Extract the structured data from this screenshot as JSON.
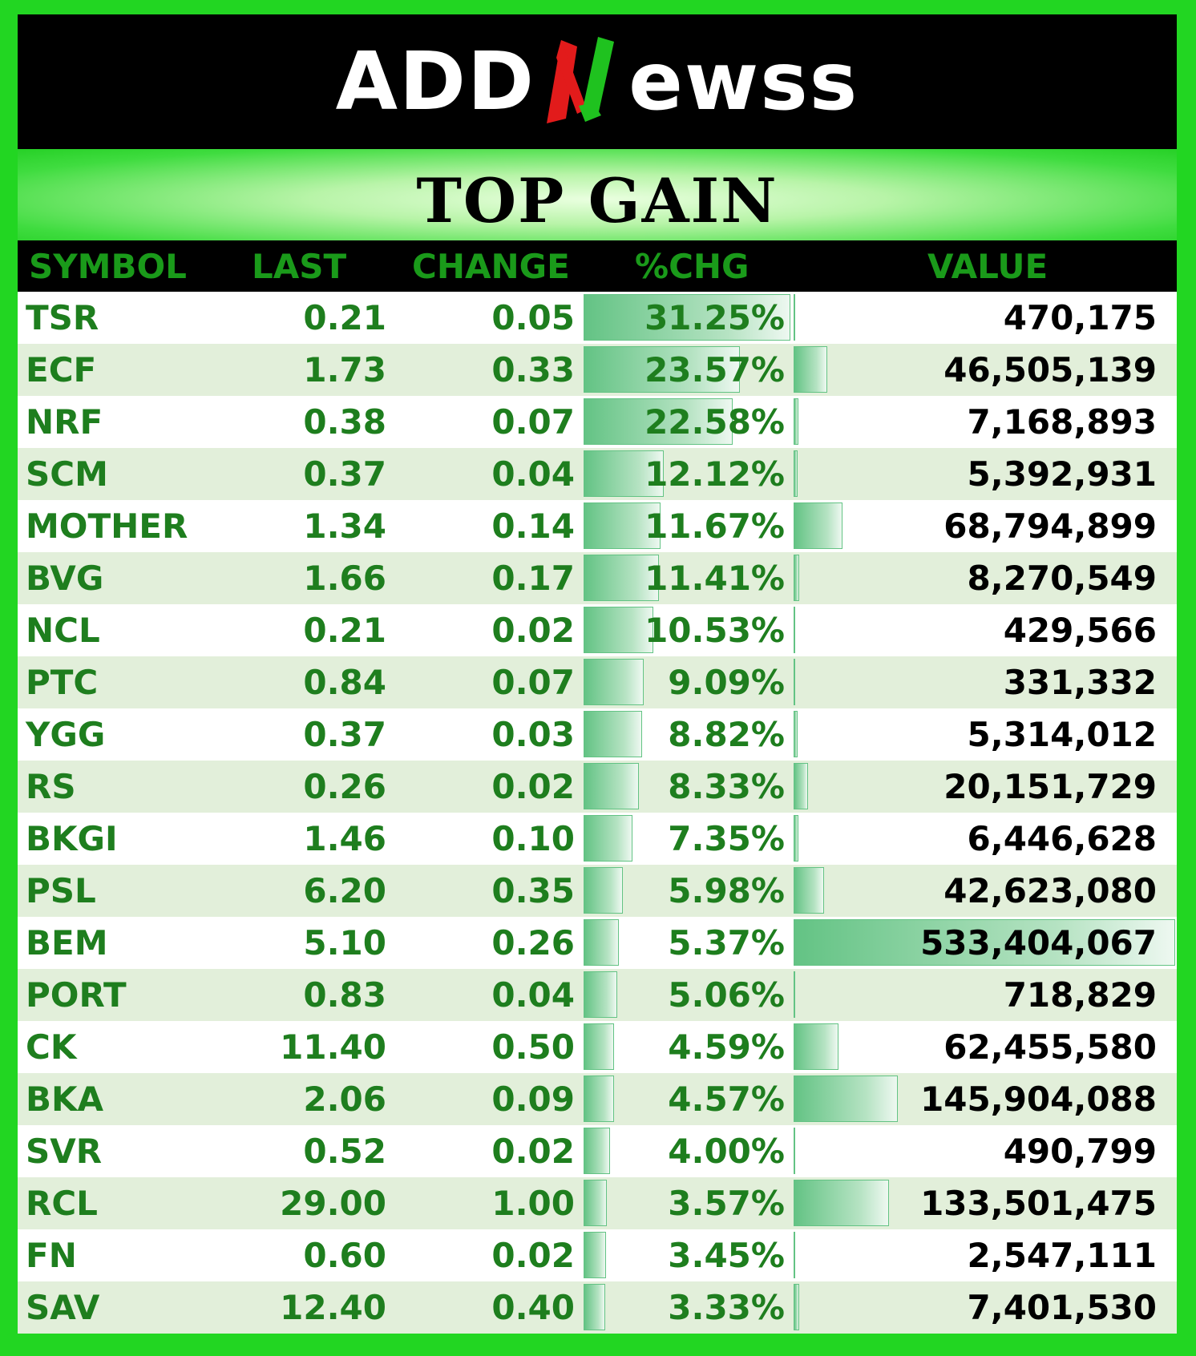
{
  "logo": {
    "text_left": "ADD",
    "text_right": "ewss",
    "mark_icon": "stylized-n-arrow-icon",
    "colors": {
      "red": "#e21b1b",
      "green": "#1fc21f"
    }
  },
  "banner": {
    "title": "TOP GAIN"
  },
  "columns": {
    "symbol": "SYMBOL",
    "last": "LAST",
    "change": "CHANGE",
    "pct": "%CHG",
    "value": "VALUE"
  },
  "rows": [
    {
      "symbol": "TSR",
      "last": "0.21",
      "change": "0.05",
      "pct": "31.25%",
      "value": "470,175",
      "pct_num": 31.25,
      "value_num": 470175
    },
    {
      "symbol": "ECF",
      "last": "1.73",
      "change": "0.33",
      "pct": "23.57%",
      "value": "46,505,139",
      "pct_num": 23.57,
      "value_num": 46505139
    },
    {
      "symbol": "NRF",
      "last": "0.38",
      "change": "0.07",
      "pct": "22.58%",
      "value": "7,168,893",
      "pct_num": 22.58,
      "value_num": 7168893
    },
    {
      "symbol": "SCM",
      "last": "0.37",
      "change": "0.04",
      "pct": "12.12%",
      "value": "5,392,931",
      "pct_num": 12.12,
      "value_num": 5392931
    },
    {
      "symbol": "MOTHER",
      "last": "1.34",
      "change": "0.14",
      "pct": "11.67%",
      "value": "68,794,899",
      "pct_num": 11.67,
      "value_num": 68794899
    },
    {
      "symbol": "BVG",
      "last": "1.66",
      "change": "0.17",
      "pct": "11.41%",
      "value": "8,270,549",
      "pct_num": 11.41,
      "value_num": 8270549
    },
    {
      "symbol": "NCL",
      "last": "0.21",
      "change": "0.02",
      "pct": "10.53%",
      "value": "429,566",
      "pct_num": 10.53,
      "value_num": 429566
    },
    {
      "symbol": "PTC",
      "last": "0.84",
      "change": "0.07",
      "pct": "9.09%",
      "value": "331,332",
      "pct_num": 9.09,
      "value_num": 331332
    },
    {
      "symbol": "YGG",
      "last": "0.37",
      "change": "0.03",
      "pct": "8.82%",
      "value": "5,314,012",
      "pct_num": 8.82,
      "value_num": 5314012
    },
    {
      "symbol": "RS",
      "last": "0.26",
      "change": "0.02",
      "pct": "8.33%",
      "value": "20,151,729",
      "pct_num": 8.33,
      "value_num": 20151729
    },
    {
      "symbol": "BKGI",
      "last": "1.46",
      "change": "0.10",
      "pct": "7.35%",
      "value": "6,446,628",
      "pct_num": 7.35,
      "value_num": 6446628
    },
    {
      "symbol": "PSL",
      "last": "6.20",
      "change": "0.35",
      "pct": "5.98%",
      "value": "42,623,080",
      "pct_num": 5.98,
      "value_num": 42623080
    },
    {
      "symbol": "BEM",
      "last": "5.10",
      "change": "0.26",
      "pct": "5.37%",
      "value": "533,404,067",
      "pct_num": 5.37,
      "value_num": 533404067
    },
    {
      "symbol": "PORT",
      "last": "0.83",
      "change": "0.04",
      "pct": "5.06%",
      "value": "718,829",
      "pct_num": 5.06,
      "value_num": 718829
    },
    {
      "symbol": "CK",
      "last": "11.40",
      "change": "0.50",
      "pct": "4.59%",
      "value": "62,455,580",
      "pct_num": 4.59,
      "value_num": 62455580
    },
    {
      "symbol": "BKA",
      "last": "2.06",
      "change": "0.09",
      "pct": "4.57%",
      "value": "145,904,088",
      "pct_num": 4.57,
      "value_num": 145904088
    },
    {
      "symbol": "SVR",
      "last": "0.52",
      "change": "0.02",
      "pct": "4.00%",
      "value": "490,799",
      "pct_num": 4.0,
      "value_num": 490799
    },
    {
      "symbol": "RCL",
      "last": "29.00",
      "change": "1.00",
      "pct": "3.57%",
      "value": "133,501,475",
      "pct_num": 3.57,
      "value_num": 133501475
    },
    {
      "symbol": "FN",
      "last": "0.60",
      "change": "0.02",
      "pct": "3.45%",
      "value": "2,547,111",
      "pct_num": 3.45,
      "value_num": 2547111
    },
    {
      "symbol": "SAV",
      "last": "12.40",
      "change": "0.40",
      "pct": "3.33%",
      "value": "7,401,530",
      "pct_num": 3.33,
      "value_num": 7401530
    }
  ],
  "colors": {
    "outer_border": "#22d622",
    "row_alt": "#e2efda",
    "text_green": "#1e7e1e",
    "header_green": "#1a9a1a",
    "databar": "#63c384"
  }
}
